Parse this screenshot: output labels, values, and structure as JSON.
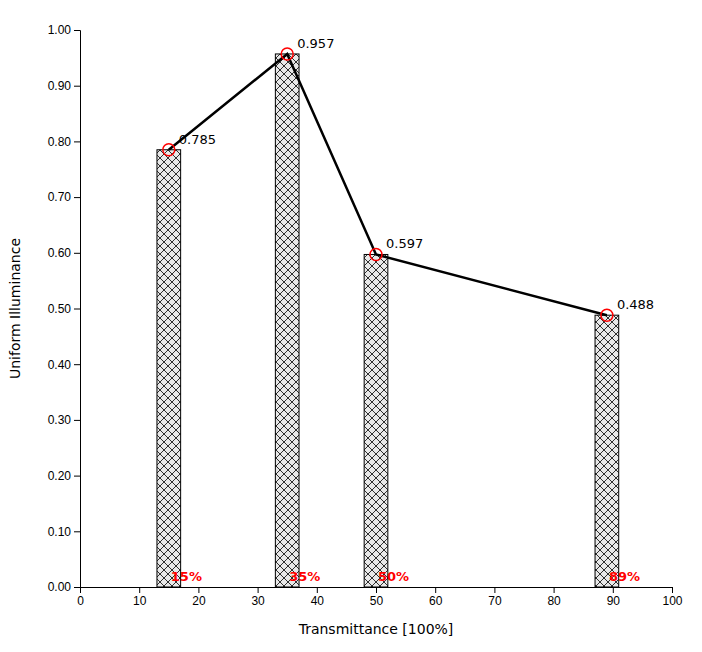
{
  "chart_data": {
    "type": "bar",
    "xlabel": "Transmittance [100%]",
    "ylabel": "Uniform Illuminance",
    "x": [
      15,
      35,
      50,
      89
    ],
    "xlim": [
      0,
      100
    ],
    "ylim": [
      0.0,
      1.0
    ],
    "xticks": [
      0,
      10,
      20,
      30,
      40,
      50,
      60,
      70,
      80,
      90,
      100
    ],
    "yticks": [
      {
        "value": 0,
        "label": "0.00"
      },
      {
        "value": 0.1,
        "label": "0.10"
      },
      {
        "value": 0.2,
        "label": "0.20"
      },
      {
        "value": 0.3,
        "label": "0.30"
      },
      {
        "value": 0.4,
        "label": "0.40"
      },
      {
        "value": 0.5,
        "label": "0.50"
      },
      {
        "value": 0.6,
        "label": "0.60"
      },
      {
        "value": 0.7,
        "label": "0.70"
      },
      {
        "value": 0.8,
        "label": "0.80"
      },
      {
        "value": 0.9,
        "label": "0.90"
      },
      {
        "value": 1,
        "label": "1.00"
      }
    ],
    "grid": false,
    "data_labels": true,
    "annotations": [
      {
        "text": "15%",
        "color": "#ff0000"
      },
      {
        "text": "35%",
        "color": "#ff0000"
      },
      {
        "text": "50%",
        "color": "#ff0000"
      },
      {
        "text": "89%",
        "color": "#ff0000"
      }
    ],
    "series": [
      {
        "type": "bar",
        "color": "#e8e8e8",
        "values": [
          0.785,
          0.957,
          0.597,
          0.488
        ]
      },
      {
        "type": "line",
        "color": "#000000",
        "values": [
          0.785,
          0.957,
          0.597,
          0.488
        ]
      },
      {
        "type": "scatter",
        "color": "#ff0000",
        "marker": "circle",
        "values": [
          0.785,
          0.957,
          0.597,
          0.488
        ]
      }
    ]
  }
}
